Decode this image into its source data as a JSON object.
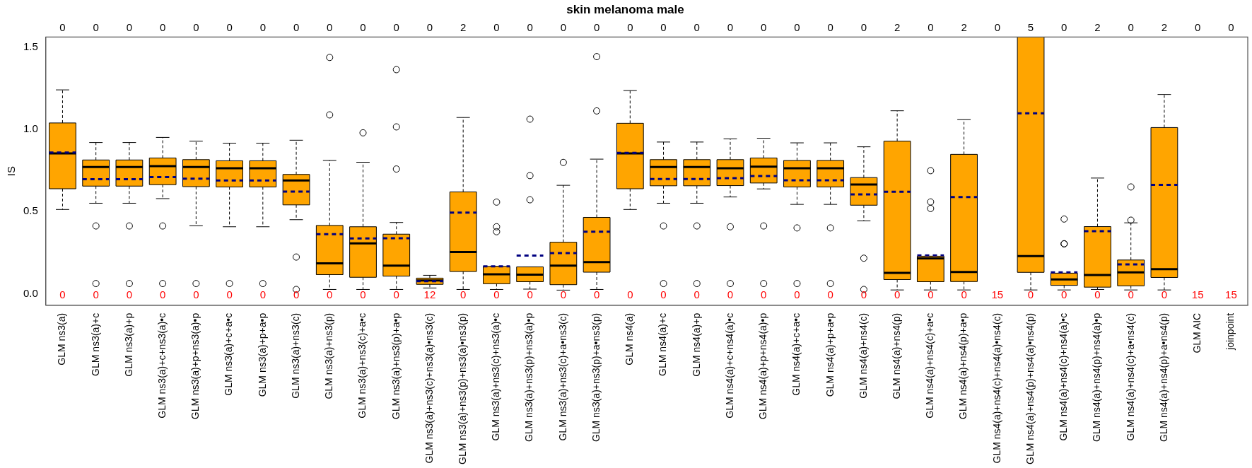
{
  "chart_data": {
    "type": "box",
    "title": "skin melanoma male",
    "ylabel": "IS",
    "categories": [
      "GLM ns3(a)",
      "GLM ns3(a)+c",
      "GLM ns3(a)+p",
      "GLM ns3(a)+c+ns3(a)•c",
      "GLM ns3(a)+p+ns3(a)•p",
      "GLM ns3(a)+c+a•c",
      "GLM ns3(a)+p+a•p",
      "GLM ns3(a)+ns3(c)",
      "GLM ns3(a)+ns3(p)",
      "GLM ns3(a)+ns3(c)+a•c",
      "GLM ns3(a)+ns3(p)+a•p",
      "GLM ns3(a)+ns3(c)+ns3(a)•ns3(c)",
      "GLM ns3(a)+ns3(p)+ns3(a)•ns3(p)",
      "GLM ns3(a)+ns3(c)+ns3(a)•c",
      "GLM ns3(a)+ns3(p)+ns3(a)•p",
      "GLM ns3(a)+ns3(c)+a•ns3(c)",
      "GLM ns3(a)+ns3(p)+a•ns3(p)",
      "GLM ns4(a)",
      "GLM ns4(a)+c",
      "GLM ns4(a)+p",
      "GLM ns4(a)+c+ns4(a)•c",
      "GLM ns4(a)+p+ns4(a)•p",
      "GLM ns4(a)+c+a•c",
      "GLM ns4(a)+p+a•p",
      "GLM ns4(a)+ns4(c)",
      "GLM ns4(a)+ns4(p)",
      "GLM ns4(a)+ns4(c)+a•c",
      "GLM ns4(a)+ns4(p)+a•p",
      "GLM ns4(a)+ns4(c)+ns4(a)•ns4(c)",
      "GLM ns4(a)+ns4(p)+ns4(a)•ns4(p)",
      "GLM ns4(a)+ns4(c)+ns4(a)•c",
      "GLM ns4(a)+ns4(p)+ns4(a)•p",
      "GLM ns4(a)+ns4(c)+a•ns4(c)",
      "GLM ns4(a)+ns4(p)+a•ns4(p)",
      "GLM AIC",
      "joinpoint"
    ],
    "series": [
      {
        "color": "#ffa500",
        "boxes": [
          {
            "low": 0.512,
            "q1": 0.638,
            "median": 0.853,
            "q3": 1.038,
            "high": 1.239,
            "mean": 0.858
          },
          {
            "low": 0.55,
            "q1": 0.654,
            "median": 0.77,
            "q3": 0.813,
            "high": 0.919,
            "mean": 0.696,
            "outliers": [
              0.412,
              0.062
            ]
          },
          {
            "low": 0.55,
            "q1": 0.654,
            "median": 0.77,
            "q3": 0.813,
            "high": 0.919,
            "mean": 0.696,
            "outliers": [
              0.412,
              0.062
            ]
          },
          {
            "low": 0.578,
            "q1": 0.663,
            "median": 0.775,
            "q3": 0.825,
            "high": 0.95,
            "mean": 0.709,
            "outliers": [
              0.412,
              0.062
            ]
          },
          {
            "low": 0.413,
            "q1": 0.651,
            "median": 0.77,
            "q3": 0.815,
            "high": 0.927,
            "mean": 0.699,
            "outliers": [
              0.062
            ]
          },
          {
            "low": 0.407,
            "q1": 0.649,
            "median": 0.763,
            "q3": 0.808,
            "high": 0.915,
            "mean": 0.689,
            "outliers": [
              0.062
            ]
          },
          {
            "low": 0.407,
            "q1": 0.649,
            "median": 0.763,
            "q3": 0.808,
            "high": 0.915,
            "mean": 0.689,
            "outliers": [
              0.062
            ]
          },
          {
            "low": 0.45,
            "q1": 0.54,
            "median": 0.689,
            "q3": 0.725,
            "high": 0.933,
            "mean": 0.621,
            "outliers": [
              0.223,
              0.026
            ]
          },
          {
            "low": 0.026,
            "q1": 0.116,
            "median": 0.185,
            "q3": 0.415,
            "high": 0.81,
            "mean": 0.362,
            "outliers": [
              1.436,
              1.087
            ]
          },
          {
            "low": 0.026,
            "q1": 0.1,
            "median": 0.306,
            "q3": 0.407,
            "high": 0.799,
            "mean": 0.336,
            "outliers": [
              0.978
            ]
          },
          {
            "low": 0.026,
            "q1": 0.107,
            "median": 0.171,
            "q3": 0.362,
            "high": 0.433,
            "mean": 0.337,
            "outliers": [
              1.362,
              1.014,
              0.758
            ]
          },
          {
            "low": 0.035,
            "q1": 0.057,
            "median": 0.081,
            "q3": 0.095,
            "high": 0.112,
            "mean": 0.076
          },
          {
            "low": 0.026,
            "q1": 0.135,
            "median": 0.253,
            "q3": 0.619,
            "high": 1.071,
            "mean": 0.493
          },
          {
            "low": 0.026,
            "q1": 0.061,
            "median": 0.118,
            "q3": 0.166,
            "high": 0.166,
            "mean": 0.166,
            "outliers": [
              0.557,
              0.407,
              0.377
            ]
          },
          {
            "low": 0.028,
            "q1": 0.073,
            "median": 0.116,
            "q3": 0.163,
            "high": 0.163,
            "mean": 0.232,
            "outliers": [
              1.061,
              0.718,
              0.571
            ]
          },
          {
            "low": 0.022,
            "q1": 0.055,
            "median": 0.171,
            "q3": 0.313,
            "high": 0.659,
            "mean": 0.247,
            "outliers": [
              0.798
            ]
          },
          {
            "low": 0.026,
            "q1": 0.131,
            "median": 0.192,
            "q3": 0.464,
            "high": 0.818,
            "mean": 0.377,
            "outliers": [
              1.441,
              1.111
            ]
          },
          {
            "low": 0.512,
            "q1": 0.638,
            "median": 0.853,
            "q3": 1.036,
            "high": 1.235,
            "mean": 0.856
          },
          {
            "low": 0.55,
            "q1": 0.656,
            "median": 0.77,
            "q3": 0.815,
            "high": 0.922,
            "mean": 0.697,
            "outliers": [
              0.412,
              0.062
            ]
          },
          {
            "low": 0.55,
            "q1": 0.656,
            "median": 0.77,
            "q3": 0.815,
            "high": 0.922,
            "mean": 0.697,
            "outliers": [
              0.412,
              0.062
            ]
          },
          {
            "low": 0.588,
            "q1": 0.657,
            "median": 0.763,
            "q3": 0.815,
            "high": 0.941,
            "mean": 0.702,
            "outliers": [
              0.407,
              0.062
            ]
          },
          {
            "low": 0.637,
            "q1": 0.673,
            "median": 0.772,
            "q3": 0.825,
            "high": 0.945,
            "mean": 0.715,
            "outliers": [
              0.412,
              0.062
            ]
          },
          {
            "low": 0.543,
            "q1": 0.649,
            "median": 0.763,
            "q3": 0.81,
            "high": 0.917,
            "mean": 0.69,
            "outliers": [
              0.4,
              0.062
            ]
          },
          {
            "low": 0.543,
            "q1": 0.649,
            "median": 0.763,
            "q3": 0.81,
            "high": 0.917,
            "mean": 0.69,
            "outliers": [
              0.4,
              0.062
            ]
          },
          {
            "low": 0.443,
            "q1": 0.538,
            "median": 0.664,
            "q3": 0.706,
            "high": 0.893,
            "mean": 0.604,
            "outliers": [
              0.216,
              0.026
            ]
          },
          {
            "low": 0.023,
            "q1": 0.086,
            "median": 0.127,
            "q3": 0.927,
            "high": 1.112,
            "mean": 0.62
          },
          {
            "low": 0.023,
            "q1": 0.073,
            "median": 0.215,
            "q3": 0.228,
            "high": 0.228,
            "mean": 0.233,
            "outliers": [
              0.748,
              0.558,
              0.518
            ]
          },
          {
            "low": 0.023,
            "q1": 0.074,
            "median": 0.132,
            "q3": 0.847,
            "high": 1.058,
            "mean": 0.587
          },
          null,
          {
            "low": 0.023,
            "q1": 0.13,
            "median": 0.229,
            "q3": 1.56,
            "high": 1.56,
            "mean": 1.097
          },
          {
            "low": 0.023,
            "q1": 0.051,
            "median": 0.087,
            "q3": 0.125,
            "high": 0.125,
            "mean": 0.13,
            "outliers": [
              0.454,
              0.304,
              0.303
            ]
          },
          {
            "low": 0.026,
            "q1": 0.04,
            "median": 0.114,
            "q3": 0.408,
            "high": 0.703,
            "mean": 0.38
          },
          {
            "low": 0.023,
            "q1": 0.048,
            "median": 0.13,
            "q3": 0.205,
            "high": 0.431,
            "mean": 0.178,
            "outliers": [
              0.649,
              0.447
            ]
          },
          {
            "low": 0.023,
            "q1": 0.099,
            "median": 0.149,
            "q3": 1.01,
            "high": 1.211,
            "mean": 0.662
          },
          null,
          null
        ]
      }
    ],
    "ylim": [
      -0.07,
      1.56
    ],
    "yticks": [
      {
        "value": 0,
        "label": "0.0"
      },
      {
        "value": 0.5,
        "label": "0.5"
      },
      {
        "value": 1,
        "label": "1.0"
      },
      {
        "value": 1.5,
        "label": "1.5"
      }
    ],
    "grid": false,
    "legend": false,
    "annotations": [
      "0",
      "0",
      "0",
      "0",
      "0",
      "0",
      "0",
      "0",
      "0",
      "0",
      "0",
      "0",
      "2",
      "0",
      "0",
      "0",
      "0",
      "0",
      "0",
      "0",
      "0",
      "0",
      "0",
      "0",
      "0",
      "2",
      "0",
      "2",
      "0",
      "5",
      "0",
      "2",
      "0",
      "2",
      "0",
      "0",
      "0",
      "0",
      "0",
      "0",
      "0",
      "0",
      "0",
      "0",
      "0",
      "0",
      "0",
      "12",
      "0",
      "0",
      "0",
      "0",
      "0",
      "0",
      "0",
      "0",
      "0",
      "0",
      "0",
      "0",
      "0",
      "0",
      "0",
      "0",
      "15",
      "0",
      "0",
      "0",
      "0",
      "0",
      "15",
      "15"
    ]
  }
}
